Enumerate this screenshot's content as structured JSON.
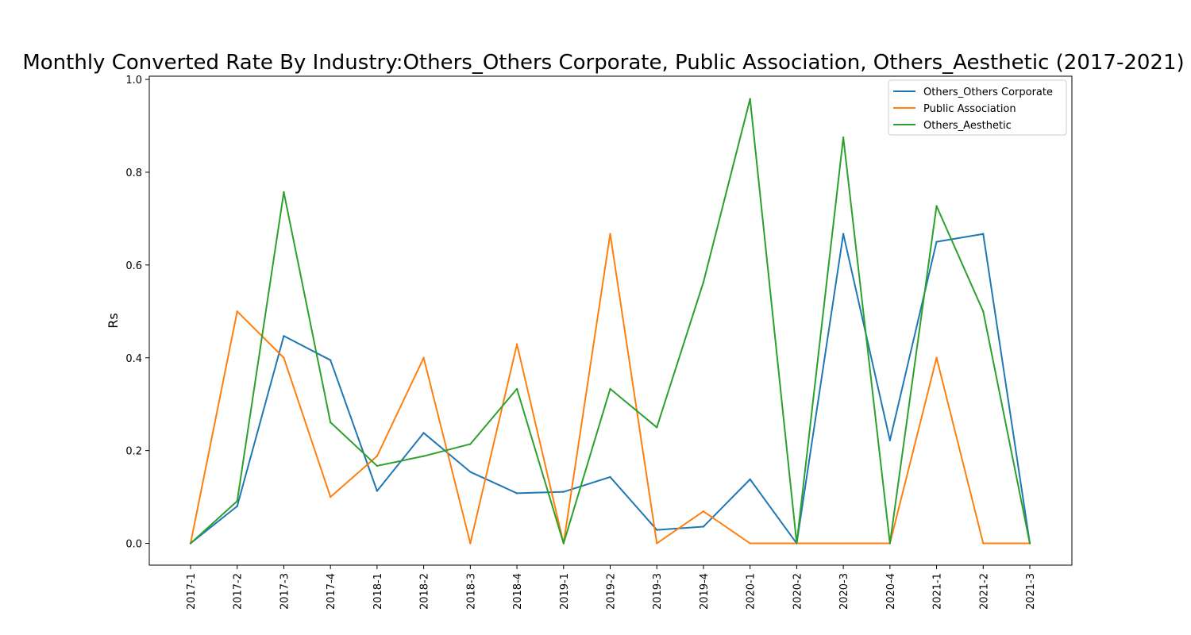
{
  "chart_data": {
    "type": "line",
    "title": "Monthly Converted Rate By Industry:Others_Others Corporate, Public Association, Others_Aesthetic (2017-2021)",
    "xlabel": "",
    "ylabel": "Rs",
    "ylim": [
      -0.047,
      1.007
    ],
    "yticks": [
      "0.0",
      "0.2",
      "0.4",
      "0.6",
      "0.8",
      "1.0"
    ],
    "grid": false,
    "legend_position": "top-right",
    "categories": [
      "2017-1",
      "2017-2",
      "2017-3",
      "2017-4",
      "2018-1",
      "2018-2",
      "2018-3",
      "2018-4",
      "2019-1",
      "2019-2",
      "2019-3",
      "2019-4",
      "2020-1",
      "2020-2",
      "2020-3",
      "2020-4",
      "2021-1",
      "2021-2",
      "2021-3"
    ],
    "series": [
      {
        "name": "Others_Others Corporate",
        "color": "#1f77b4",
        "values": [
          0.0,
          0.08,
          0.447,
          0.395,
          0.113,
          0.238,
          0.154,
          0.108,
          0.111,
          0.143,
          0.029,
          0.036,
          0.138,
          0.0,
          0.667,
          0.222,
          0.65,
          0.667,
          0.0
        ]
      },
      {
        "name": "Public Association",
        "color": "#ff7f0e",
        "values": [
          0.0,
          0.5,
          0.4,
          0.1,
          0.188,
          0.4,
          0.0,
          0.429,
          0.0,
          0.667,
          0.0,
          0.069,
          0.0,
          0.0,
          0.0,
          0.0,
          0.4,
          0.0,
          0.0
        ]
      },
      {
        "name": "Others_Aesthetic",
        "color": "#2ca02c",
        "values": [
          0.0,
          0.091,
          0.757,
          0.261,
          0.167,
          0.188,
          0.214,
          0.333,
          0.0,
          0.333,
          0.25,
          0.563,
          0.958,
          0.0,
          0.875,
          0.0,
          0.727,
          0.5,
          0.0
        ]
      }
    ]
  }
}
